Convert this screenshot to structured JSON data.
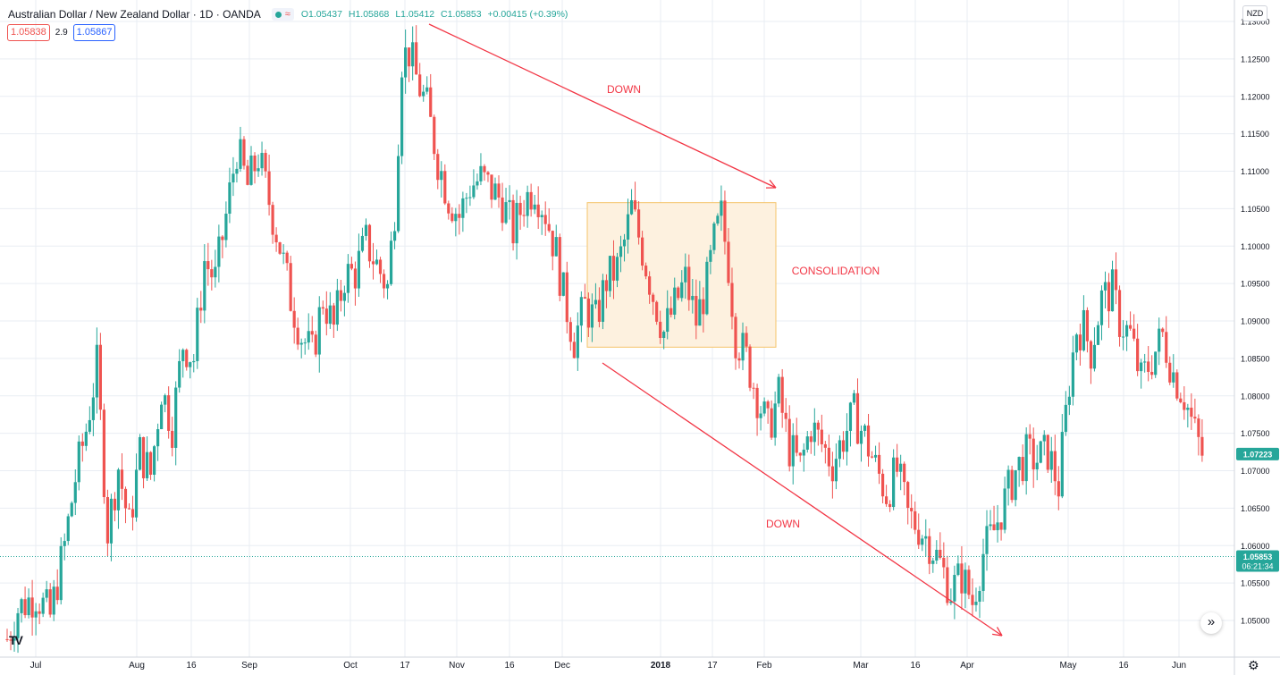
{
  "header": {
    "title": "Australian Dollar / New Zealand Dollar · 1D · OANDA",
    "ohlc_open": "O1.05437",
    "ohlc_high": "H1.05868",
    "ohlc_low": "L1.05412",
    "ohlc_close": "C1.05853",
    "ohlc_change": "+0.00415 (+0.39%)"
  },
  "quotes": {
    "sell": "1.05838",
    "spread": "2.9",
    "buy": "1.05867"
  },
  "currency_button": "NZD",
  "logo": "TV",
  "colors": {
    "up": "#26a69a",
    "down": "#ef5350",
    "annotation": "#f23645",
    "box_fill": "#fdf1df",
    "box_border": "#f5c46a",
    "grid": "#e9edf3",
    "axis_text": "#131722"
  },
  "chart_data": {
    "type": "candlestick",
    "symbol": "AUDNZD",
    "timeframe": "1D",
    "ylim": [
      1.0455,
      1.131
    ],
    "y_ticks": [
      "1.13000",
      "1.12500",
      "1.12000",
      "1.11500",
      "1.11000",
      "1.10500",
      "1.10000",
      "1.09500",
      "1.09000",
      "1.08500",
      "1.08000",
      "1.07500",
      "1.07000",
      "1.06500",
      "1.06000",
      "1.05500",
      "1.05000"
    ],
    "x_tick_labels": [
      "Jul",
      "Aug",
      "16",
      "Sep",
      "Oct",
      "17",
      "Nov",
      "16",
      "Dec",
      "2018",
      "17",
      "Feb",
      "Mar",
      "16",
      "Apr",
      "May",
      "16",
      "Jun"
    ],
    "x_tick_bold": [
      "2018"
    ],
    "price_points": [
      [
        0,
        1.0475
      ],
      [
        3,
        1.0515
      ],
      [
        8,
        1.0535
      ],
      [
        12,
        1.0505
      ],
      [
        16,
        1.06
      ],
      [
        19,
        1.069
      ],
      [
        22,
        1.0755
      ],
      [
        25,
        1.084
      ],
      [
        28,
        1.062
      ],
      [
        31,
        1.0705
      ],
      [
        34,
        1.0625
      ],
      [
        37,
        1.0725
      ],
      [
        40,
        1.0695
      ],
      [
        43,
        1.081
      ],
      [
        46,
        1.076
      ],
      [
        49,
        1.087
      ],
      [
        52,
        1.085
      ],
      [
        55,
        1.098
      ],
      [
        58,
        1.0955
      ],
      [
        61,
        1.104
      ],
      [
        64,
        1.113
      ],
      [
        67,
        1.108
      ],
      [
        70,
        1.112
      ],
      [
        73,
        1.106
      ],
      [
        76,
        1.1
      ],
      [
        79,
        1.093
      ],
      [
        82,
        1.088
      ],
      [
        85,
        1.0855
      ],
      [
        88,
        1.093
      ],
      [
        91,
        1.089
      ],
      [
        94,
        1.096
      ],
      [
        97,
        1.0965
      ],
      [
        100,
        1.1005
      ],
      [
        103,
        1.0975
      ],
      [
        106,
        1.0945
      ],
      [
        108,
        1.105
      ],
      [
        110,
        1.125
      ],
      [
        112,
        1.126
      ],
      [
        114,
        1.1225
      ],
      [
        117,
        1.1185
      ],
      [
        120,
        1.1115
      ],
      [
        123,
        1.1065
      ],
      [
        126,
        1.104
      ],
      [
        129,
        1.108
      ],
      [
        132,
        1.109
      ],
      [
        135,
        1.1075
      ],
      [
        138,
        1.106
      ],
      [
        141,
        1.102
      ],
      [
        144,
        1.106
      ],
      [
        147,
        1.108
      ],
      [
        150,
        1.1045
      ],
      [
        153,
        1.099
      ],
      [
        155,
        1.0935
      ],
      [
        158,
        1.0875
      ],
      [
        161,
        1.092
      ],
      [
        164,
        1.09
      ],
      [
        167,
        1.0955
      ],
      [
        170,
        1.097
      ],
      [
        172,
        1.1005
      ],
      [
        174,
        1.105
      ],
      [
        177,
        1.0995
      ],
      [
        180,
        1.0935
      ],
      [
        183,
        1.0885
      ],
      [
        186,
        1.092
      ],
      [
        189,
        1.0955
      ],
      [
        192,
        1.09
      ],
      [
        195,
        1.095
      ],
      [
        197,
        1.1005
      ],
      [
        199,
        1.104
      ],
      [
        201,
        1.0975
      ],
      [
        203,
        1.088
      ],
      [
        206,
        1.085
      ],
      [
        209,
        1.08
      ],
      [
        212,
        1.0755
      ],
      [
        215,
        1.08
      ],
      [
        218,
        1.073
      ],
      [
        221,
        1.0705
      ],
      [
        224,
        1.076
      ],
      [
        227,
        1.0735
      ],
      [
        230,
        1.071
      ],
      [
        233,
        1.0745
      ],
      [
        236,
        1.0775
      ],
      [
        239,
        1.0745
      ],
      [
        242,
        1.0705
      ],
      [
        245,
        1.067
      ],
      [
        248,
        1.07
      ],
      [
        251,
        1.064
      ],
      [
        254,
        1.0625
      ],
      [
        257,
        1.0605
      ],
      [
        260,
        1.0575
      ],
      [
        263,
        1.054
      ],
      [
        266,
        1.056
      ],
      [
        269,
        1.0525
      ],
      [
        272,
        1.059
      ],
      [
        275,
        1.062
      ],
      [
        278,
        1.066
      ],
      [
        281,
        1.07
      ],
      [
        284,
        1.072
      ],
      [
        287,
        1.0715
      ],
      [
        290,
        1.0725
      ],
      [
        293,
        1.068
      ],
      [
        296,
        1.082
      ],
      [
        298,
        1.089
      ],
      [
        300,
        1.089
      ],
      [
        302,
        1.086
      ],
      [
        305,
        1.093
      ],
      [
        308,
        1.094
      ],
      [
        310,
        1.09
      ],
      [
        313,
        1.088
      ],
      [
        316,
        1.082
      ],
      [
        319,
        1.085
      ],
      [
        322,
        1.088
      ],
      [
        325,
        1.083
      ],
      [
        328,
        1.08
      ],
      [
        331,
        1.075
      ],
      [
        333,
        1.0722
      ]
    ],
    "last_price": "1.07223",
    "current_price": "1.05853",
    "countdown": "06:21:34",
    "annotations": [
      {
        "type": "text",
        "text": "DOWN"
      },
      {
        "type": "text",
        "text": "CONSOLIDATION"
      },
      {
        "type": "text",
        "text": "DOWN"
      }
    ]
  }
}
